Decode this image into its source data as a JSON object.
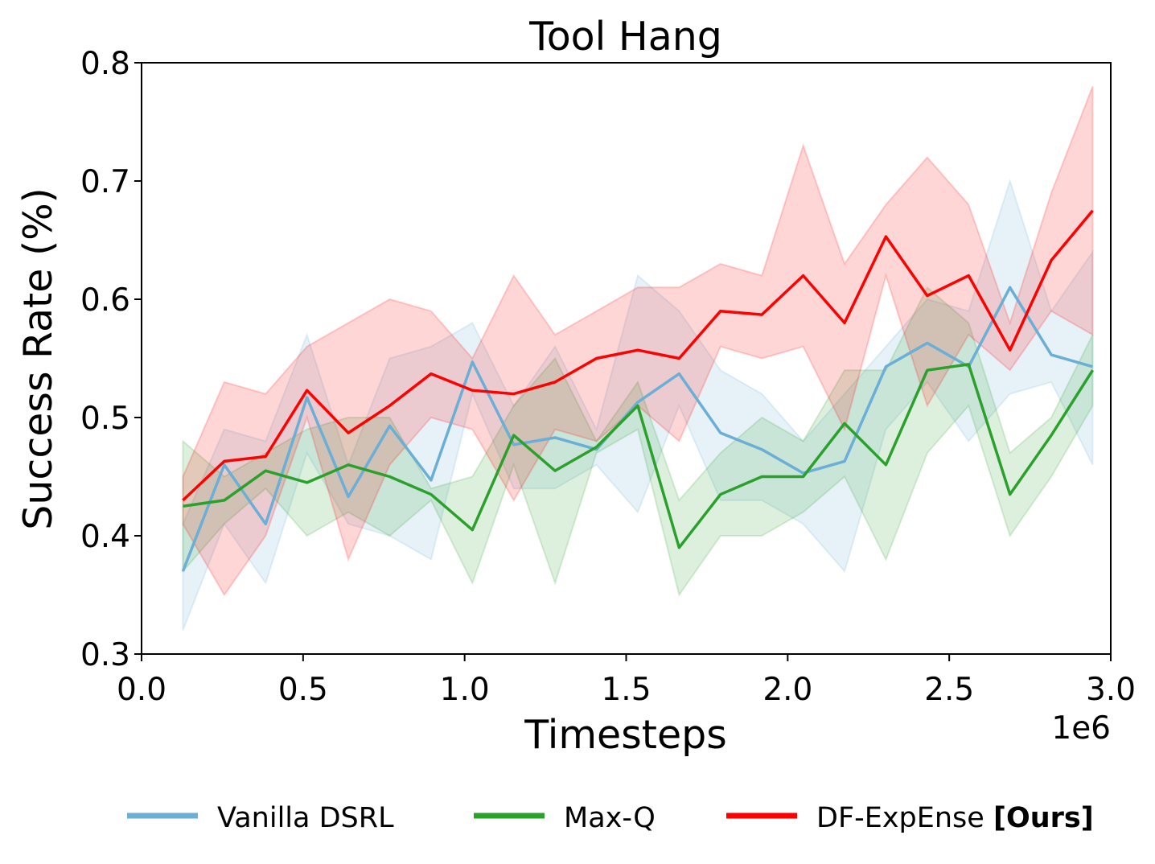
{
  "chart_data": {
    "type": "line",
    "title": "Tool Hang",
    "xlabel": "Timesteps",
    "ylabel": "Success Rate (%)",
    "x_offset_text": "1e6",
    "xlim": [
      0,
      3.0
    ],
    "ylim": [
      0.3,
      0.8
    ],
    "xticks": [
      "0.0",
      "0.5",
      "1.0",
      "1.5",
      "2.0",
      "2.5",
      "3.0"
    ],
    "yticks": [
      "0.3",
      "0.4",
      "0.5",
      "0.6",
      "0.7",
      "0.8"
    ],
    "grid": false,
    "legend_placement": "bottom-center, outside plot",
    "x": [
      0.128,
      0.256,
      0.384,
      0.512,
      0.64,
      0.768,
      0.896,
      1.024,
      1.152,
      1.28,
      1.408,
      1.536,
      1.664,
      1.792,
      1.92,
      2.048,
      2.176,
      2.304,
      2.432,
      2.56,
      2.688,
      2.816,
      2.944
    ],
    "series": [
      {
        "name": "Vanilla DSRL",
        "color": "#6baed6",
        "values": [
          0.37,
          0.46,
          0.41,
          0.517,
          0.433,
          0.493,
          0.447,
          0.547,
          0.477,
          0.483,
          0.473,
          0.513,
          0.537,
          0.487,
          0.473,
          0.453,
          0.463,
          0.543,
          0.563,
          0.543,
          0.61,
          0.553,
          0.543
        ],
        "lower": [
          0.32,
          0.41,
          0.36,
          0.47,
          0.41,
          0.4,
          0.38,
          0.52,
          0.44,
          0.44,
          0.46,
          0.42,
          0.51,
          0.43,
          0.43,
          0.41,
          0.37,
          0.49,
          0.53,
          0.48,
          0.52,
          0.53,
          0.46
        ],
        "upper": [
          0.41,
          0.49,
          0.48,
          0.57,
          0.46,
          0.55,
          0.56,
          0.58,
          0.51,
          0.56,
          0.49,
          0.62,
          0.59,
          0.54,
          0.52,
          0.48,
          0.52,
          0.56,
          0.6,
          0.59,
          0.7,
          0.59,
          0.64
        ]
      },
      {
        "name": "Max-Q",
        "color": "#2ca02c",
        "values": [
          0.425,
          0.43,
          0.455,
          0.445,
          0.46,
          0.45,
          0.435,
          0.405,
          0.485,
          0.455,
          0.475,
          0.51,
          0.39,
          0.435,
          0.45,
          0.45,
          0.495,
          0.46,
          0.54,
          0.545,
          0.435,
          0.485,
          0.54
        ],
        "lower": [
          0.37,
          0.41,
          0.44,
          0.4,
          0.42,
          0.4,
          0.43,
          0.36,
          0.46,
          0.36,
          0.47,
          0.49,
          0.35,
          0.4,
          0.4,
          0.42,
          0.45,
          0.38,
          0.47,
          0.51,
          0.4,
          0.45,
          0.51
        ],
        "upper": [
          0.48,
          0.45,
          0.47,
          0.49,
          0.5,
          0.5,
          0.44,
          0.45,
          0.51,
          0.55,
          0.48,
          0.53,
          0.43,
          0.47,
          0.5,
          0.48,
          0.54,
          0.54,
          0.61,
          0.58,
          0.47,
          0.5,
          0.57
        ]
      },
      {
        "name": "DF-ExpEnse [Ours]",
        "name_plain": "DF-ExpEnse",
        "name_bold": "[Ours]",
        "color": "#ff0000",
        "values": [
          0.43,
          0.463,
          0.467,
          0.523,
          0.487,
          0.51,
          0.537,
          0.523,
          0.52,
          0.53,
          0.55,
          0.557,
          0.55,
          0.59,
          0.587,
          0.62,
          0.58,
          0.653,
          0.603,
          0.62,
          0.557,
          0.633,
          0.675
        ],
        "lower": [
          0.41,
          0.35,
          0.4,
          0.5,
          0.38,
          0.46,
          0.5,
          0.49,
          0.43,
          0.49,
          0.48,
          0.51,
          0.48,
          0.56,
          0.55,
          0.56,
          0.49,
          0.62,
          0.51,
          0.57,
          0.54,
          0.59,
          0.57
        ],
        "upper": [
          0.45,
          0.53,
          0.52,
          0.56,
          0.58,
          0.6,
          0.59,
          0.55,
          0.62,
          0.57,
          0.59,
          0.61,
          0.61,
          0.63,
          0.62,
          0.73,
          0.63,
          0.68,
          0.72,
          0.68,
          0.58,
          0.69,
          0.78
        ]
      }
    ]
  }
}
